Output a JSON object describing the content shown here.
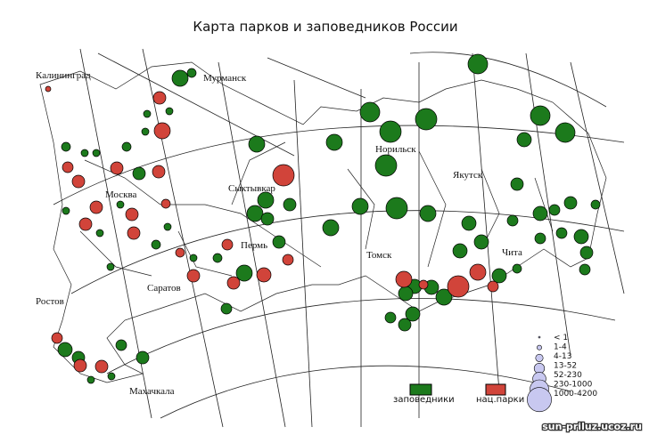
{
  "title": "Карта парков и заповедников России",
  "cities": [
    "Калининград",
    "Мурманск",
    "Москва",
    "Сыктывкар",
    "Норильск",
    "Якутск",
    "Пермь",
    "Томск",
    "Чита",
    "Саратов",
    "Ростов",
    "Махачкала"
  ],
  "legend": {
    "sizes": [
      "< 1",
      "1-4",
      "4-13",
      "13-52",
      "52-230",
      "230-1000",
      "1000-4200"
    ],
    "types": [
      "заповедники",
      "нац.парки"
    ]
  },
  "watermark": "sun-priluz.ucoz.ru"
}
